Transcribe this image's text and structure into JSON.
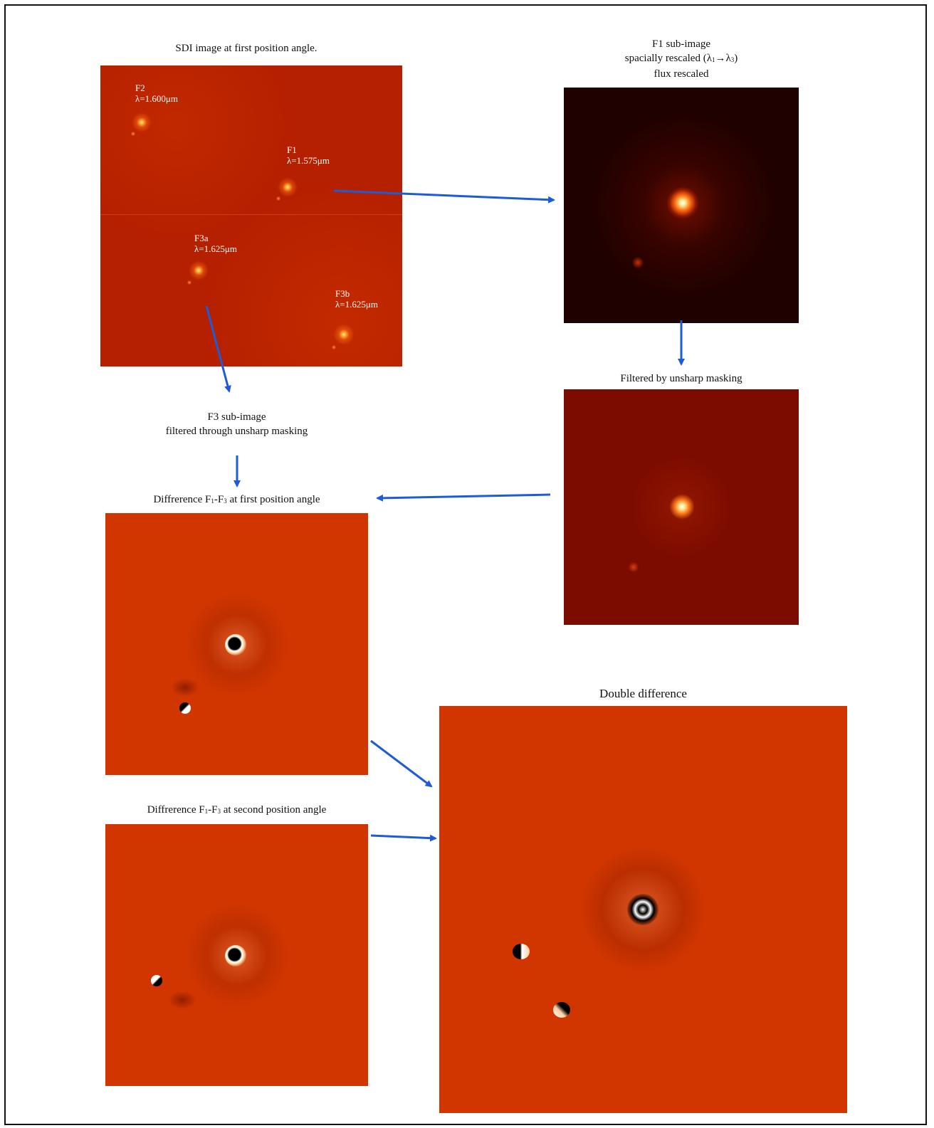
{
  "colors": {
    "frame": "#111111",
    "arrow": "#1f5bd6",
    "sdi_bg": "#b52000",
    "subimage_bg": "#1f0100",
    "filtered_bg": "#7d0c00",
    "difference_bg": "#d13600"
  },
  "sdi": {
    "caption": "SDI image at first position angle.",
    "labels": {
      "f2": {
        "name": "F2",
        "wave": "λ=1.600μm"
      },
      "f1": {
        "name": "F1",
        "wave": "λ=1.575μm"
      },
      "f3a": {
        "name": "F3a",
        "wave": "λ=1.625μm"
      },
      "f3b": {
        "name": "F3b",
        "wave": "λ=1.625μm"
      }
    }
  },
  "f1_sub": {
    "line1": "F1 sub-image",
    "line2_pre": "spacially rescaled (λ",
    "line2_s1": "1",
    "line2_mid": "→λ",
    "line2_s2": "3",
    "line2_post": ")",
    "line3": "flux rescaled"
  },
  "filtered": {
    "caption": "Filtered by unsharp masking"
  },
  "f3_sub": {
    "line1": "F3 sub-image",
    "line2": "filtered through unsharp masking"
  },
  "diff1": {
    "pre": "Diffrerence F",
    "s1": "1",
    "mid": "-F",
    "s2": "3",
    "post": " at first position angle"
  },
  "diff2": {
    "pre": "Diffrerence F",
    "s1": "1",
    "mid": "-F",
    "s2": "3",
    "post": " at second  position angle"
  },
  "double": {
    "caption": "Double difference"
  }
}
